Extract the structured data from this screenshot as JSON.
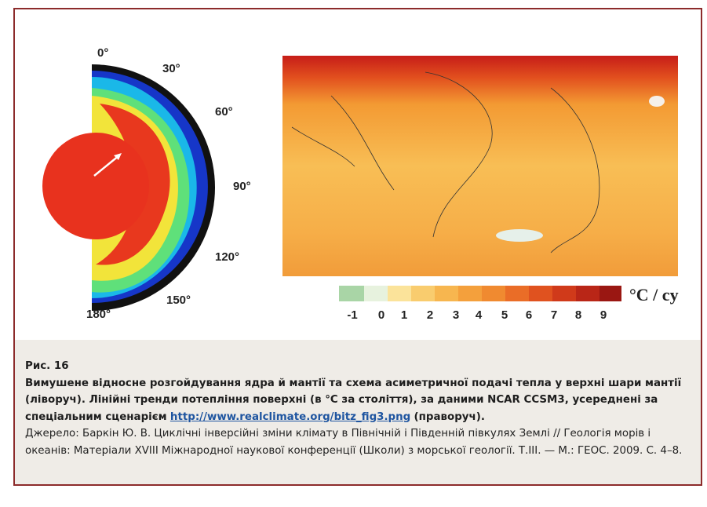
{
  "figure": {
    "angle_labels": [
      "0°",
      "30°",
      "60°",
      "90°",
      "120°",
      "150°",
      "180°"
    ],
    "colorbar": {
      "ticks": [
        "-1",
        "0",
        "1",
        "2",
        "3",
        "4",
        "5",
        "6",
        "7",
        "8",
        "9"
      ],
      "unit": "°C / cy"
    }
  },
  "caption": {
    "label": "Рис. 16",
    "title_text": "Вимушене відносне розгойдування ядра й мантії та схема асиметричної подачі тепла у верхні шари мантії (ліворуч). Лінійні тренди потепління поверхні (в °С за століття), за даними NCAR CCSM3, усереднені за спеціальним сценарієм",
    "link": "http://www.realclimate.org/bitz_fig3.png",
    "after_link": "(праворуч).",
    "source": "Джерело: Баркін Ю. В. Циклічні інверсійні зміни клімату в Північній і Південній півкулях Землі // Геологія морів і океанів: Матеріали XVIII Міжнародної наукової конференції (Школи) з морської геології. Т.III. — М.: ГЕОС. 2009. С. 4–8."
  }
}
